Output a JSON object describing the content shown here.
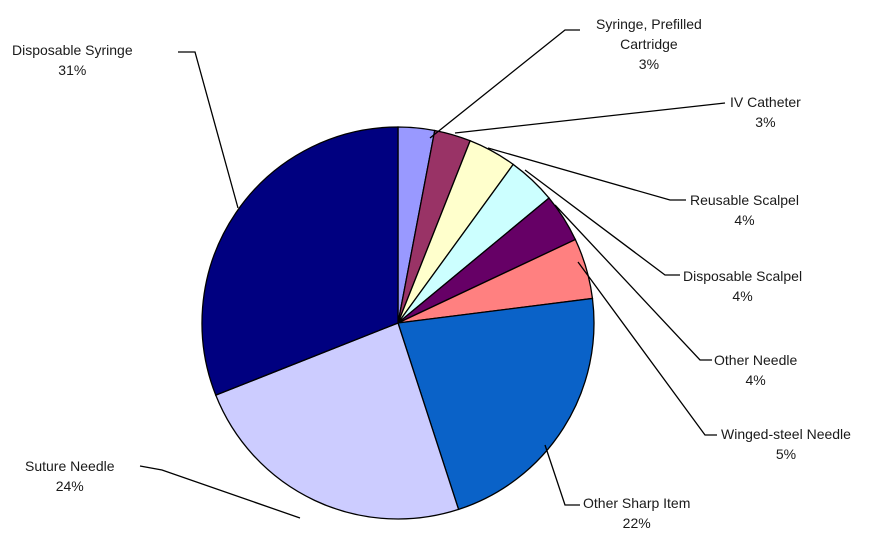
{
  "chart_data": {
    "type": "pie",
    "title": "",
    "unit": "%",
    "slices": [
      {
        "label": "Syringe, Prefilled Cartridge",
        "label_lines": [
          "Syringe, Prefilled",
          "Cartridge"
        ],
        "value": 3,
        "display": "3%",
        "color": "#9999ff"
      },
      {
        "label": "IV Catheter",
        "label_lines": [
          "IV Catheter"
        ],
        "value": 3,
        "display": "3%",
        "color": "#993366"
      },
      {
        "label": "Reusable Scalpel",
        "label_lines": [
          "Reusable Scalpel"
        ],
        "value": 4,
        "display": "4%",
        "color": "#ffffcc"
      },
      {
        "label": "Disposable Scalpel",
        "label_lines": [
          "Disposable Scalpel"
        ],
        "value": 4,
        "display": "4%",
        "color": "#ccffff"
      },
      {
        "label": "Other Needle",
        "label_lines": [
          "Other Needle"
        ],
        "value": 4,
        "display": "4%",
        "color": "#660066"
      },
      {
        "label": "Winged-steel Needle",
        "label_lines": [
          "Winged-steel Needle"
        ],
        "value": 5,
        "display": "5%",
        "color": "#ff8080"
      },
      {
        "label": "Other Sharp Item",
        "label_lines": [
          "Other Sharp Item"
        ],
        "value": 22,
        "display": "22%",
        "color": "#0a62c8"
      },
      {
        "label": "Suture Needle",
        "label_lines": [
          "Suture Needle"
        ],
        "value": 24,
        "display": "24%",
        "color": "#ccccff"
      },
      {
        "label": "Disposable Syringe",
        "label_lines": [
          "Disposable Syringe"
        ],
        "value": 31,
        "display": "31%",
        "color": "#000080"
      }
    ]
  }
}
